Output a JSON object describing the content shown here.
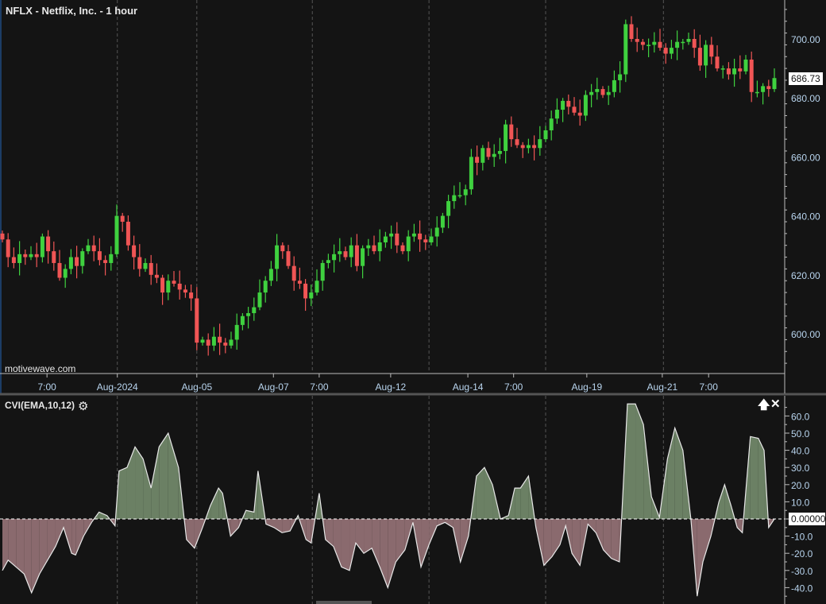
{
  "header": {
    "title": "NFLX - Netflix, Inc. - 1 hour",
    "watermark": "motivewave.com"
  },
  "indicator": {
    "title": "CVI(EMA,10,12)",
    "settings_icon": "gear-icon",
    "move_up_icon": "arrow-up-icon",
    "close_icon": "close-icon",
    "current_value": "0.000000"
  },
  "colors": {
    "background": "#141414",
    "up": "#3fd13f",
    "down": "#f05555",
    "axis_text": "#b8d4ee",
    "pos_fill": "#6b8064",
    "neg_fill": "#8a6a6e",
    "line": "#e8e8e8"
  },
  "chart_data": [
    {
      "type": "candlestick",
      "title": "NFLX - Netflix, Inc. - 1 hour",
      "current_price": "686.73",
      "ylim": [
        588,
        712
      ],
      "y_ticks": [
        "600.00",
        "620.00",
        "640.00",
        "660.00",
        "680.00",
        "700.00"
      ],
      "y_tick_values": [
        600,
        620,
        640,
        660,
        680,
        700
      ],
      "x_labels": [
        {
          "bar": 7.8,
          "label": "7:00"
        },
        {
          "bar": 20.1,
          "label": "Aug-2024"
        },
        {
          "bar": 34,
          "label": "Aug-05"
        },
        {
          "bar": 47.4,
          "label": "Aug-07"
        },
        {
          "bar": 55.4,
          "label": "7:00"
        },
        {
          "bar": 67.9,
          "label": "Aug-12"
        },
        {
          "bar": 81.4,
          "label": "Aug-14"
        },
        {
          "bar": 89.4,
          "label": "7:00"
        },
        {
          "bar": 102.2,
          "label": "Aug-19"
        },
        {
          "bar": 115.4,
          "label": "Aug-21"
        },
        {
          "bar": 123.5,
          "label": "7:00"
        }
      ],
      "session_breaks": [
        20.1,
        34,
        54.2,
        74.6,
        95,
        115.6
      ],
      "open_first": 634,
      "closes": [
        632,
        626,
        624,
        627,
        626,
        627,
        626,
        633,
        628,
        624,
        619,
        622,
        626,
        623,
        628,
        630,
        628,
        625,
        624,
        627,
        640,
        638,
        630,
        626,
        622,
        624,
        620,
        619,
        614,
        618,
        617,
        615,
        614,
        612,
        597,
        598,
        596,
        599,
        597,
        596,
        598,
        603,
        606,
        607,
        609,
        614,
        618,
        622,
        630,
        628,
        623,
        618,
        617,
        612,
        614,
        618,
        624,
        625,
        627,
        628,
        626,
        630,
        623,
        629,
        630,
        628,
        631,
        633,
        634,
        630,
        628,
        633,
        634,
        632,
        631,
        633,
        636,
        640,
        645,
        647,
        647,
        649,
        660,
        658,
        663,
        660,
        661,
        662,
        671,
        666,
        664,
        663,
        664,
        663,
        666,
        669,
        673,
        676,
        679,
        677,
        675,
        674,
        681,
        682,
        683,
        681,
        682,
        686,
        688,
        705,
        700,
        699,
        698,
        698,
        699,
        697,
        695,
        697,
        699,
        699,
        700,
        697,
        691,
        698,
        694,
        690,
        690,
        688,
        690,
        689,
        693,
        682,
        682,
        684,
        683,
        686.73
      ]
    },
    {
      "type": "area",
      "title": "CVI(EMA,10,12)",
      "ylim": [
        -46,
        70
      ],
      "y_ticks": [
        "-40.0",
        "-30.0",
        "-20.0",
        "-10.0",
        "0.0",
        "10.0",
        "20.0",
        "30.0",
        "40.0",
        "50.0",
        "60.0"
      ],
      "y_tick_values": [
        -40,
        -30,
        -20,
        -10,
        0,
        10,
        20,
        30,
        40,
        50,
        60
      ],
      "points": [
        [
          0,
          -30
        ],
        [
          1,
          -24
        ],
        [
          2.4,
          -28
        ],
        [
          3.8,
          -32
        ],
        [
          5.1,
          -43
        ],
        [
          6.5,
          -32
        ],
        [
          7.9,
          -24
        ],
        [
          9.3,
          -16
        ],
        [
          10.7,
          -5
        ],
        [
          12.1,
          -20
        ],
        [
          12.8,
          -21
        ],
        [
          14.2,
          -10
        ],
        [
          15.6,
          -2
        ],
        [
          16.9,
          4
        ],
        [
          18.3,
          2
        ],
        [
          19.7,
          -4
        ],
        [
          20.4,
          28
        ],
        [
          21.8,
          30
        ],
        [
          23.2,
          42
        ],
        [
          24.6,
          35
        ],
        [
          26,
          18
        ],
        [
          27.4,
          42
        ],
        [
          29,
          50
        ],
        [
          30.8,
          30
        ],
        [
          32.2,
          -12
        ],
        [
          33.6,
          -17
        ],
        [
          35,
          -5
        ],
        [
          36.4,
          8
        ],
        [
          37.8,
          18
        ],
        [
          38.5,
          15
        ],
        [
          39.9,
          -10
        ],
        [
          41.3,
          -5
        ],
        [
          42.6,
          5
        ],
        [
          44,
          4
        ],
        [
          44.7,
          28
        ],
        [
          46.1,
          -3
        ],
        [
          47.5,
          -5
        ],
        [
          48.9,
          -8
        ],
        [
          50.3,
          -7
        ],
        [
          51.7,
          2
        ],
        [
          53.1,
          -12
        ],
        [
          54,
          -14
        ],
        [
          55.4,
          15
        ],
        [
          56.5,
          -12
        ],
        [
          57.9,
          -16
        ],
        [
          59.3,
          -28
        ],
        [
          60.7,
          -30
        ],
        [
          61.8,
          -14
        ],
        [
          63.2,
          -20
        ],
        [
          64.6,
          -17
        ],
        [
          66,
          -28
        ],
        [
          67.4,
          -40
        ],
        [
          68.8,
          -25
        ],
        [
          70.4,
          -18
        ],
        [
          71.8,
          -2
        ],
        [
          73.2,
          -28
        ],
        [
          74.6,
          -15
        ],
        [
          76,
          -4
        ],
        [
          77.4,
          -2
        ],
        [
          78.8,
          -5
        ],
        [
          80.1,
          -25
        ],
        [
          81.5,
          -10
        ],
        [
          82.9,
          25
        ],
        [
          84.3,
          30
        ],
        [
          85.7,
          20
        ],
        [
          87.1,
          0
        ],
        [
          88.5,
          2
        ],
        [
          89.6,
          18
        ],
        [
          90.6,
          18
        ],
        [
          92,
          25
        ],
        [
          93.3,
          -5
        ],
        [
          94.7,
          -27
        ],
        [
          96.1,
          -22
        ],
        [
          97.5,
          -15
        ],
        [
          98.5,
          -4
        ],
        [
          99.6,
          -20
        ],
        [
          101,
          -27
        ],
        [
          102.4,
          -3
        ],
        [
          103.8,
          -8
        ],
        [
          105.1,
          -18
        ],
        [
          106.5,
          -23
        ],
        [
          107.9,
          -25
        ],
        [
          109.3,
          67
        ],
        [
          110.7,
          67
        ],
        [
          112.1,
          55
        ],
        [
          113.5,
          13
        ],
        [
          114.9,
          1
        ],
        [
          116.3,
          35
        ],
        [
          117.6,
          53
        ],
        [
          119,
          40
        ],
        [
          120.4,
          0
        ],
        [
          121.5,
          -45
        ],
        [
          122.5,
          -25
        ],
        [
          123.9,
          -10
        ],
        [
          125.3,
          10
        ],
        [
          126.3,
          20
        ],
        [
          127.4,
          8
        ],
        [
          128.5,
          -5
        ],
        [
          129.4,
          -8
        ],
        [
          130.8,
          48
        ],
        [
          132.2,
          47
        ],
        [
          133.2,
          40
        ],
        [
          134,
          -5
        ],
        [
          135,
          0
        ]
      ]
    }
  ]
}
